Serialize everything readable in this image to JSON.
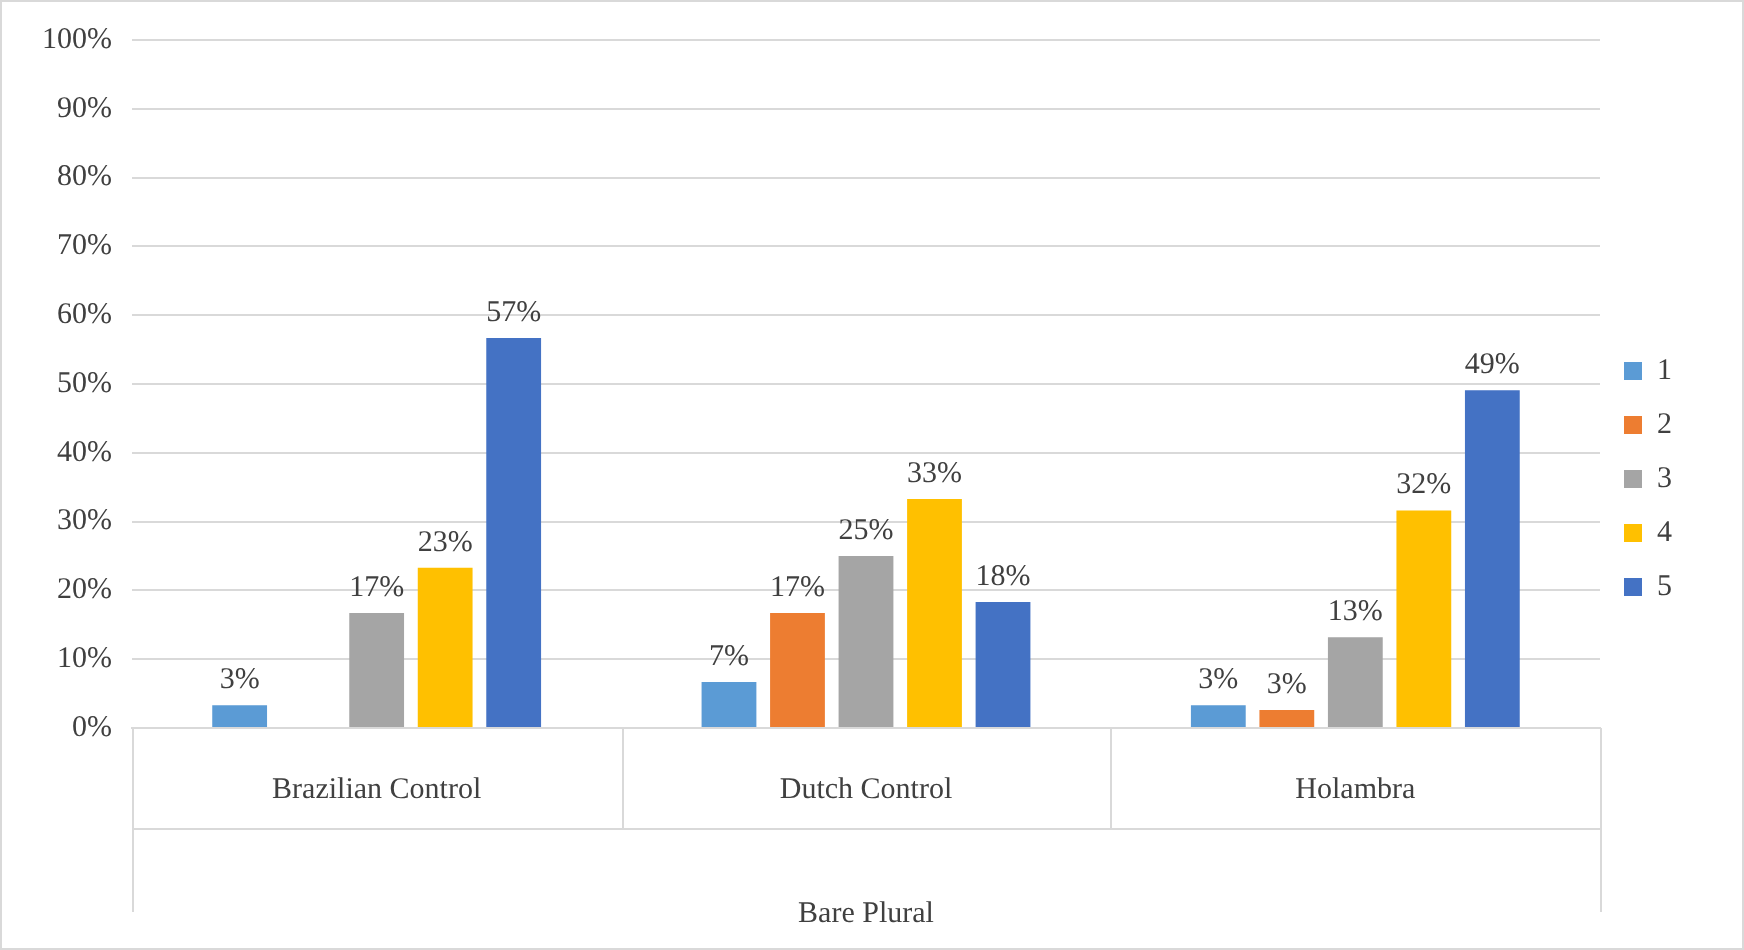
{
  "chart_data": {
    "type": "bar",
    "xlabel": "Bare Plural",
    "categories": [
      "Brazilian Control",
      "Dutch Control",
      "Holambra"
    ],
    "series": [
      {
        "name": "1",
        "color": "#5b9bd5",
        "values": [
          3.3,
          6.7,
          3.3
        ],
        "value_labels": [
          "3%",
          "7%",
          "3%"
        ]
      },
      {
        "name": "2",
        "color": "#ed7d31",
        "values": [
          null,
          16.7,
          2.6
        ],
        "value_labels": [
          null,
          "17%",
          "3%"
        ]
      },
      {
        "name": "3",
        "color": "#a5a5a5",
        "values": [
          16.7,
          25,
          13.2
        ],
        "value_labels": [
          "17%",
          "25%",
          "13%"
        ]
      },
      {
        "name": "4",
        "color": "#ffc000",
        "values": [
          23.3,
          33.3,
          31.6
        ],
        "value_labels": [
          "23%",
          "33%",
          "32%"
        ]
      },
      {
        "name": "5",
        "color": "#4472c4",
        "values": [
          56.7,
          18.3,
          49.1
        ],
        "value_labels": [
          "57%",
          "18%",
          "49%"
        ]
      }
    ],
    "ylim": [
      0,
      100
    ],
    "yticks": [
      {
        "value": 0,
        "label": "0%"
      },
      {
        "value": 10,
        "label": "10%"
      },
      {
        "value": 20,
        "label": "20%"
      },
      {
        "value": 30,
        "label": "30%"
      },
      {
        "value": 40,
        "label": "40%"
      },
      {
        "value": 50,
        "label": "50%"
      },
      {
        "value": 60,
        "label": "60%"
      },
      {
        "value": 70,
        "label": "70%"
      },
      {
        "value": 80,
        "label": "80%"
      },
      {
        "value": 90,
        "label": "90%"
      },
      {
        "value": 100,
        "label": "100%"
      }
    ],
    "grid": "y",
    "legend": "right"
  }
}
